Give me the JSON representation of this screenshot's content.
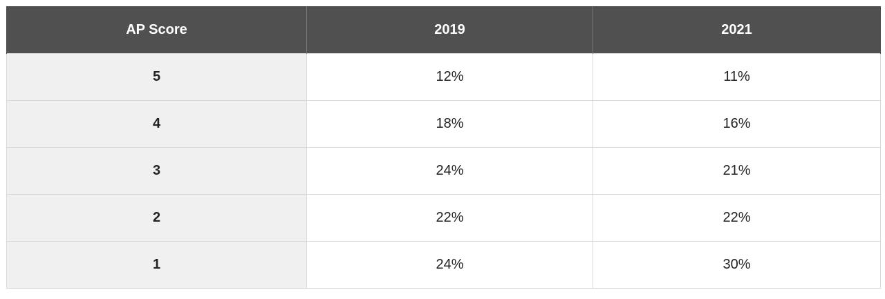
{
  "chart_data": {
    "type": "table",
    "columns": [
      "AP Score",
      "2019",
      "2021"
    ],
    "rows": [
      {
        "score": "5",
        "y2019": "12%",
        "y2021": "11%"
      },
      {
        "score": "4",
        "y2019": "18%",
        "y2021": "16%"
      },
      {
        "score": "3",
        "y2019": "24%",
        "y2021": "21%"
      },
      {
        "score": "2",
        "y2019": "22%",
        "y2021": "22%"
      },
      {
        "score": "1",
        "y2019": "24%",
        "y2021": "30%"
      }
    ]
  },
  "colors": {
    "header_bg": "#505050",
    "header_text": "#ffffff",
    "first_col_bg": "#f0f0f0",
    "border": "#d9d9d9"
  }
}
